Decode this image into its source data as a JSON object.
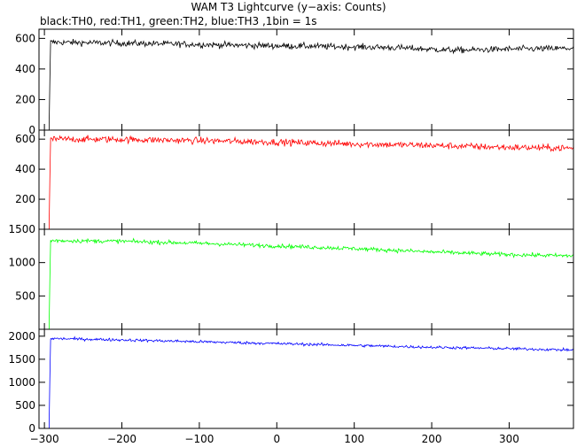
{
  "chart_data": {
    "type": "line",
    "title": "WAM T3 Lightcurve (y−axis: Counts)",
    "subtitle": "black:TH0, red:TH1, green:TH2, blue:TH3 ,1bin = 1s",
    "xlim": [
      -307,
      383
    ],
    "x_ticks": [
      -300,
      -200,
      -100,
      0,
      100,
      200,
      300
    ],
    "x_tick_labels": [
      "−300",
      "−200",
      "−100",
      "0",
      "100",
      "200",
      "300"
    ],
    "onset_x": -292,
    "panels": [
      {
        "name": "TH0",
        "color": "#000000",
        "ylim": [
          0,
          660
        ],
        "y_ticks": [
          0,
          200,
          400,
          600
        ],
        "y_tick_labels": [
          "0",
          "200",
          "400",
          "600"
        ],
        "baseline": 0,
        "level_points": [
          [
            -292,
            575
          ],
          [
            -250,
            572
          ],
          [
            -150,
            565
          ],
          [
            -50,
            555
          ],
          [
            50,
            548
          ],
          [
            150,
            540
          ],
          [
            230,
            522
          ],
          [
            300,
            530
          ],
          [
            383,
            535
          ]
        ],
        "noise": 20
      },
      {
        "name": "TH1",
        "color": "#ff0000",
        "ylim": [
          0,
          660
        ],
        "y_ticks": [
          200,
          400,
          600
        ],
        "y_tick_labels": [
          "200",
          "400",
          "600"
        ],
        "baseline": 0,
        "level_points": [
          [
            -292,
            600
          ],
          [
            -200,
            598
          ],
          [
            -100,
            590
          ],
          [
            0,
            580
          ],
          [
            100,
            568
          ],
          [
            200,
            558
          ],
          [
            300,
            545
          ],
          [
            383,
            540
          ]
        ],
        "noise": 22
      },
      {
        "name": "TH2",
        "color": "#00ff00",
        "ylim": [
          0,
          1500
        ],
        "y_ticks": [
          500,
          1000,
          1500
        ],
        "y_tick_labels": [
          "500",
          "1000",
          "1500"
        ],
        "baseline": 0,
        "level_points": [
          [
            -292,
            1330
          ],
          [
            -200,
            1320
          ],
          [
            -100,
            1290
          ],
          [
            0,
            1250
          ],
          [
            100,
            1210
          ],
          [
            200,
            1160
          ],
          [
            300,
            1120
          ],
          [
            383,
            1100
          ]
        ],
        "noise": 30
      },
      {
        "name": "TH3",
        "color": "#0000ff",
        "ylim": [
          0,
          2150
        ],
        "y_ticks": [
          0,
          500,
          1000,
          1500,
          2000
        ],
        "y_tick_labels": [
          "0",
          "500",
          "1000",
          "1500",
          "2000"
        ],
        "baseline": 0,
        "level_points": [
          [
            -292,
            1950
          ],
          [
            -200,
            1920
          ],
          [
            -100,
            1880
          ],
          [
            0,
            1840
          ],
          [
            100,
            1800
          ],
          [
            200,
            1760
          ],
          [
            300,
            1730
          ],
          [
            383,
            1700
          ]
        ],
        "noise": 30
      }
    ],
    "grid": false,
    "legend": "none"
  }
}
